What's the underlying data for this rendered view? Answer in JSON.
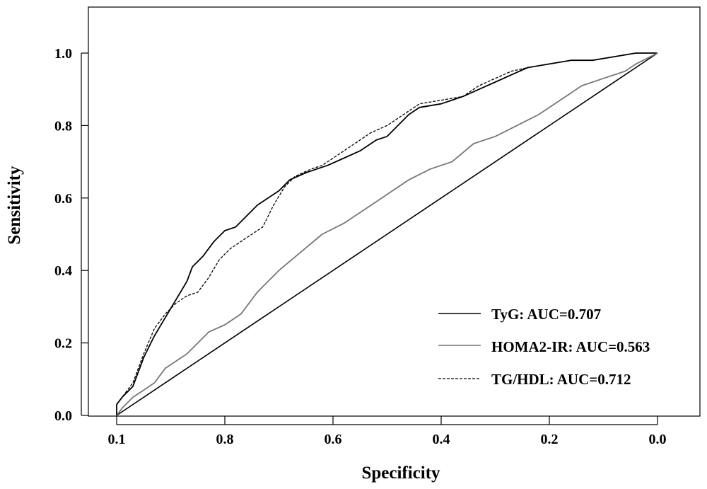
{
  "chart_data": {
    "type": "line",
    "xlabel": "Specificity",
    "ylabel": "Sensitivity",
    "xlim": [
      1.0,
      0.0
    ],
    "ylim": [
      0.0,
      1.0
    ],
    "x_ticks": [
      "0.1",
      "0.8",
      "0.6",
      "0.4",
      "0.2",
      "0.0"
    ],
    "y_ticks": [
      "0.0",
      "0.2",
      "0.4",
      "0.6",
      "0.8",
      "1.0"
    ],
    "reference_line": [
      [
        1.0,
        0.0
      ],
      [
        0.0,
        1.0
      ]
    ],
    "legend_position": "bottom-right",
    "series": [
      {
        "name": "TyG: AUC=0.707",
        "color": "#000000",
        "style": "solid",
        "points": [
          [
            1.0,
            0.0
          ],
          [
            1.0,
            0.03
          ],
          [
            0.99,
            0.05
          ],
          [
            0.97,
            0.08
          ],
          [
            0.95,
            0.16
          ],
          [
            0.93,
            0.22
          ],
          [
            0.91,
            0.27
          ],
          [
            0.89,
            0.32
          ],
          [
            0.87,
            0.37
          ],
          [
            0.86,
            0.41
          ],
          [
            0.84,
            0.44
          ],
          [
            0.82,
            0.48
          ],
          [
            0.8,
            0.51
          ],
          [
            0.78,
            0.52
          ],
          [
            0.76,
            0.55
          ],
          [
            0.74,
            0.58
          ],
          [
            0.72,
            0.6
          ],
          [
            0.7,
            0.62
          ],
          [
            0.68,
            0.65
          ],
          [
            0.65,
            0.67
          ],
          [
            0.63,
            0.68
          ],
          [
            0.61,
            0.69
          ],
          [
            0.58,
            0.71
          ],
          [
            0.55,
            0.73
          ],
          [
            0.52,
            0.76
          ],
          [
            0.5,
            0.77
          ],
          [
            0.48,
            0.8
          ],
          [
            0.46,
            0.83
          ],
          [
            0.44,
            0.85
          ],
          [
            0.4,
            0.86
          ],
          [
            0.36,
            0.88
          ],
          [
            0.33,
            0.9
          ],
          [
            0.3,
            0.92
          ],
          [
            0.27,
            0.94
          ],
          [
            0.24,
            0.96
          ],
          [
            0.2,
            0.97
          ],
          [
            0.16,
            0.98
          ],
          [
            0.12,
            0.98
          ],
          [
            0.08,
            0.99
          ],
          [
            0.04,
            1.0
          ],
          [
            0.0,
            1.0
          ]
        ]
      },
      {
        "name": "HOMA2-IR: AUC=0.563",
        "color": "#777777",
        "style": "solid",
        "points": [
          [
            1.0,
            0.0
          ],
          [
            0.99,
            0.02
          ],
          [
            0.97,
            0.05
          ],
          [
            0.95,
            0.07
          ],
          [
            0.93,
            0.09
          ],
          [
            0.91,
            0.13
          ],
          [
            0.89,
            0.15
          ],
          [
            0.87,
            0.17
          ],
          [
            0.85,
            0.2
          ],
          [
            0.83,
            0.23
          ],
          [
            0.8,
            0.25
          ],
          [
            0.77,
            0.28
          ],
          [
            0.74,
            0.34
          ],
          [
            0.7,
            0.4
          ],
          [
            0.66,
            0.45
          ],
          [
            0.62,
            0.5
          ],
          [
            0.58,
            0.53
          ],
          [
            0.54,
            0.57
          ],
          [
            0.5,
            0.61
          ],
          [
            0.46,
            0.65
          ],
          [
            0.42,
            0.68
          ],
          [
            0.38,
            0.7
          ],
          [
            0.34,
            0.75
          ],
          [
            0.3,
            0.77
          ],
          [
            0.26,
            0.8
          ],
          [
            0.22,
            0.83
          ],
          [
            0.18,
            0.87
          ],
          [
            0.14,
            0.91
          ],
          [
            0.1,
            0.93
          ],
          [
            0.06,
            0.95
          ],
          [
            0.04,
            0.97
          ],
          [
            0.0,
            1.0
          ]
        ]
      },
      {
        "name": "TG/HDL: AUC=0.712",
        "color": "#000000",
        "style": "dashed",
        "points": [
          [
            1.0,
            0.0
          ],
          [
            1.0,
            0.03
          ],
          [
            0.99,
            0.05
          ],
          [
            0.97,
            0.09
          ],
          [
            0.95,
            0.17
          ],
          [
            0.93,
            0.24
          ],
          [
            0.91,
            0.28
          ],
          [
            0.89,
            0.31
          ],
          [
            0.87,
            0.33
          ],
          [
            0.85,
            0.34
          ],
          [
            0.83,
            0.38
          ],
          [
            0.81,
            0.43
          ],
          [
            0.79,
            0.46
          ],
          [
            0.77,
            0.48
          ],
          [
            0.75,
            0.5
          ],
          [
            0.73,
            0.52
          ],
          [
            0.71,
            0.58
          ],
          [
            0.69,
            0.63
          ],
          [
            0.67,
            0.66
          ],
          [
            0.64,
            0.68
          ],
          [
            0.62,
            0.69
          ],
          [
            0.59,
            0.72
          ],
          [
            0.56,
            0.75
          ],
          [
            0.53,
            0.78
          ],
          [
            0.5,
            0.8
          ],
          [
            0.47,
            0.83
          ],
          [
            0.44,
            0.86
          ],
          [
            0.4,
            0.87
          ],
          [
            0.36,
            0.88
          ],
          [
            0.33,
            0.91
          ],
          [
            0.3,
            0.93
          ],
          [
            0.27,
            0.95
          ],
          [
            0.24,
            0.96
          ],
          [
            0.2,
            0.97
          ],
          [
            0.16,
            0.98
          ],
          [
            0.12,
            0.98
          ],
          [
            0.08,
            0.99
          ],
          [
            0.04,
            1.0
          ],
          [
            0.0,
            1.0
          ]
        ]
      }
    ]
  }
}
